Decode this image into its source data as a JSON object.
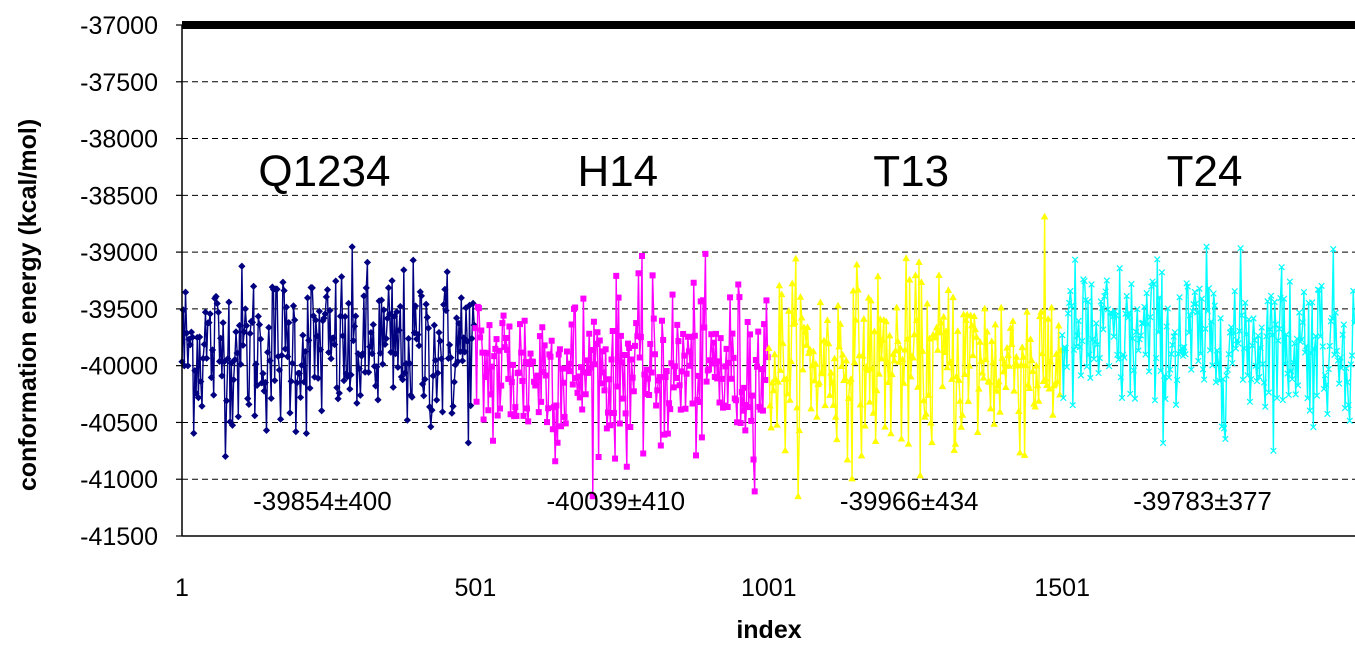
{
  "chart_data": {
    "type": "line",
    "title": "",
    "xlabel": "index",
    "ylabel": "conformation energy (kcal/mol)",
    "ylim": [
      -41500,
      -37000
    ],
    "xlim": [
      1,
      2000
    ],
    "y_ticks": [
      -37000,
      -37500,
      -38000,
      -38500,
      -39000,
      -39500,
      -40000,
      -40500,
      -41000,
      -41500
    ],
    "y_tick_labels": [
      "-37000",
      "-37500",
      "-38000",
      "-38500",
      "-39000",
      "-39500",
      "-40000",
      "-40500",
      "-41000",
      "-41500"
    ],
    "x_ticks": [
      1,
      501,
      1001,
      1501
    ],
    "x_tick_labels": [
      "1",
      "501",
      "1001",
      "1501"
    ],
    "grid": "horizontal dashed",
    "legend": "none",
    "series": [
      {
        "name": "Q1234",
        "color": "#000080",
        "marker": "diamond",
        "x_range": [
          1,
          500
        ],
        "mean": -39854,
        "sd": 400,
        "annotation": "-39854±400"
      },
      {
        "name": "H14",
        "color": "#ff00ff",
        "marker": "square",
        "x_range": [
          501,
          1000
        ],
        "mean": -40039,
        "sd": 410,
        "annotation": "-40039±410"
      },
      {
        "name": "T13",
        "color": "#ffff00",
        "marker": "triangle",
        "x_range": [
          1001,
          1500
        ],
        "mean": -39966,
        "sd": 434,
        "annotation": "-39966±434"
      },
      {
        "name": "T24",
        "color": "#00ffff",
        "marker": "x",
        "x_range": [
          1501,
          2000
        ],
        "mean": -39783,
        "sd": 377,
        "annotation": "-39783±377"
      }
    ]
  }
}
